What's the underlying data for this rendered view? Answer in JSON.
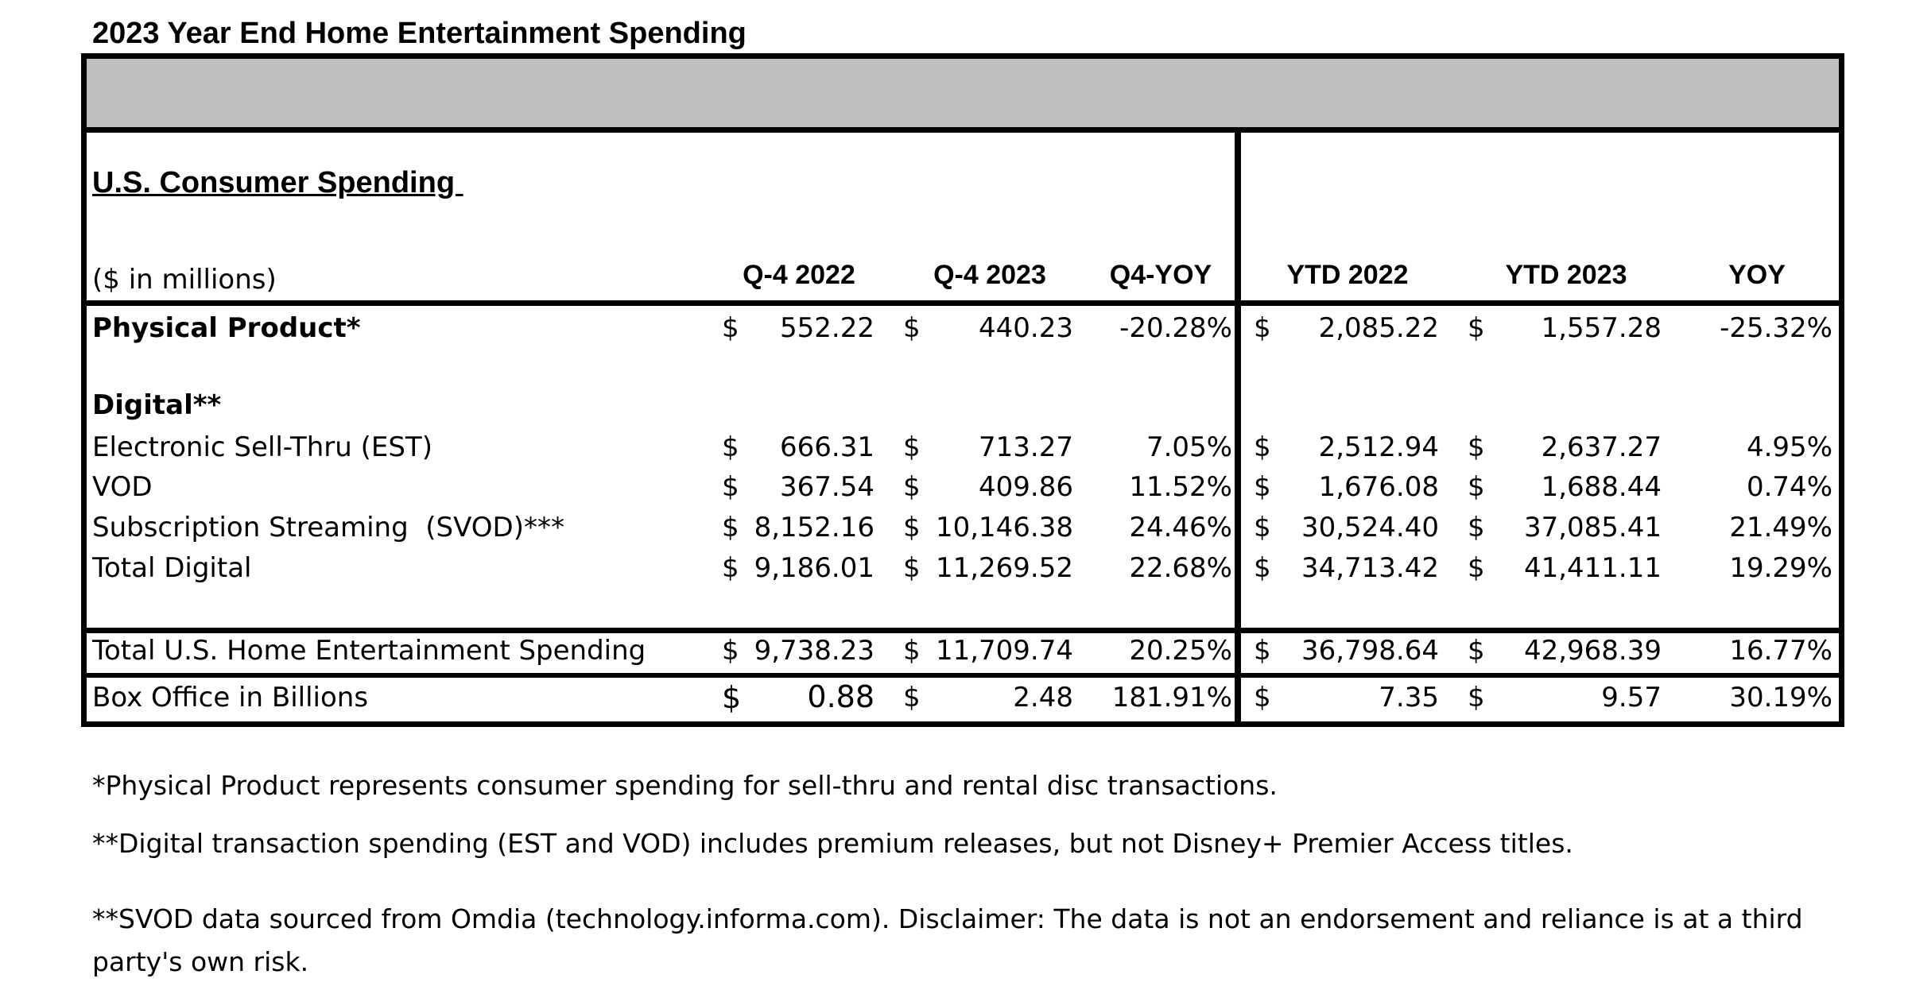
{
  "title": "2023 Year End Home Entertainment Spending",
  "section_heading": "U.S. Consumer Spending ",
  "units_label": "($ in millions)",
  "columns": [
    "Q-4 2022",
    "Q-4 2023",
    "Q4-YOY",
    "YTD 2022",
    "YTD 2023",
    "YOY"
  ],
  "currency_symbol": "$",
  "rows": [
    {
      "label": "Physical Product*",
      "bold": true,
      "q4_2022": "552.22",
      "q4_2023": "440.23",
      "q4_yoy": "-20.28%",
      "ytd_2022": "2,085.22",
      "ytd_2023": "1,557.28",
      "yoy": "-25.32%"
    },
    {
      "label": "Digital**",
      "bold": true,
      "heading": true
    },
    {
      "label": "Electronic Sell-Thru (EST)",
      "q4_2022": "666.31",
      "q4_2023": "713.27",
      "q4_yoy": "7.05%",
      "ytd_2022": "2,512.94",
      "ytd_2023": "2,637.27",
      "yoy": "4.95%"
    },
    {
      "label": "VOD",
      "q4_2022": "367.54",
      "q4_2023": "409.86",
      "q4_yoy": "11.52%",
      "ytd_2022": "1,676.08",
      "ytd_2023": "1,688.44",
      "yoy": "0.74%"
    },
    {
      "label": "Subscription Streaming  (SVOD)***",
      "q4_2022": "8,152.16",
      "q4_2023": "10,146.38",
      "q4_yoy": "24.46%",
      "ytd_2022": "30,524.40",
      "ytd_2023": "37,085.41",
      "yoy": "21.49%"
    },
    {
      "label": "Total Digital",
      "q4_2022": "9,186.01",
      "q4_2023": "11,269.52",
      "q4_yoy": "22.68%",
      "ytd_2022": "34,713.42",
      "ytd_2023": "41,411.11",
      "yoy": "19.29%"
    },
    {
      "label": "Total U.S. Home Entertainment Spending",
      "q4_2022": "9,738.23",
      "q4_2023": "11,709.74",
      "q4_yoy": "20.25%",
      "ytd_2022": "36,798.64",
      "ytd_2023": "42,968.39",
      "yoy": "16.77%"
    },
    {
      "label": "Box Office in Billions",
      "q4_2022": "0.88",
      "q4_2023": "2.48",
      "q4_yoy": "181.91%",
      "ytd_2022": "7.35",
      "ytd_2023": "9.57",
      "yoy": "30.19%"
    }
  ],
  "footnotes": [
    "*Physical Product  represents consumer spending for sell-thru and rental disc transactions.",
    "**Digital transaction spending (EST and VOD) includes premium releases, but not Disney+ Premier Access titles.",
    "**SVOD data sourced from Omdia (technology.informa.com). Disclaimer: The data is not an endorsement and reliance is at a third party's own risk."
  ]
}
